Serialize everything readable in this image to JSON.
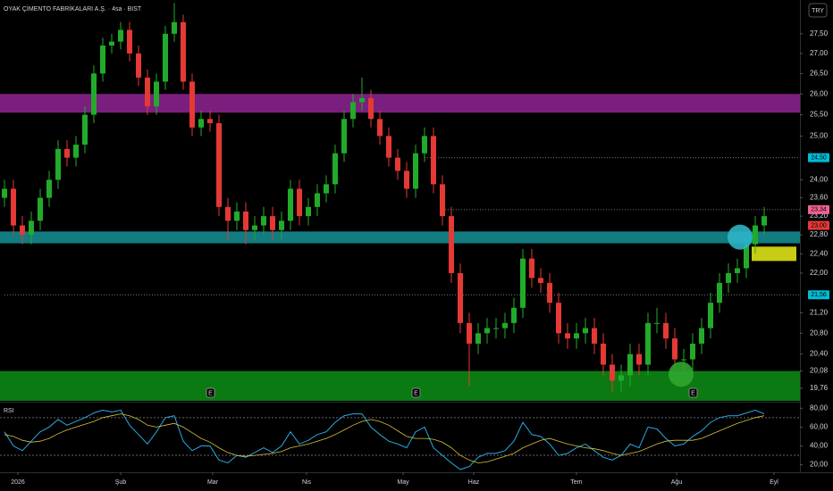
{
  "chart_data": {
    "type": "candlestick",
    "title": "OYAK ÇİMENTO FABRİKALARI A.Ş. · 4sa · BIST",
    "currency": "TRY",
    "log_scale": true,
    "up_color": "#22ab2a",
    "down_color": "#e53935",
    "xlim": [
      -0.5,
      89
    ],
    "ylim": [
      19.53,
      28.38
    ],
    "xticks": [
      {
        "value": 1.5,
        "label": "2026"
      },
      {
        "value": 13,
        "label": "Şub"
      },
      {
        "value": 23.3,
        "label": "Mar"
      },
      {
        "value": 33.8,
        "label": "Nis"
      },
      {
        "value": 44.6,
        "label": "May"
      },
      {
        "value": 52.5,
        "label": "Haz"
      },
      {
        "value": 64,
        "label": "Tem"
      },
      {
        "value": 75.2,
        "label": "Ağu"
      },
      {
        "value": 86.1,
        "label": "Eyl"
      }
    ],
    "yticks": [
      {
        "value": 27.5,
        "label": "27,50"
      },
      {
        "value": 27,
        "label": "27,00"
      },
      {
        "value": 26.5,
        "label": "26,50"
      },
      {
        "value": 26,
        "label": "26,00"
      },
      {
        "value": 25.5,
        "label": "25,50"
      },
      {
        "value": 25,
        "label": "25,00"
      },
      {
        "value": 24,
        "label": "24,00"
      },
      {
        "value": 23.6,
        "label": "23,60"
      },
      {
        "value": 23.2,
        "label": "23,20"
      },
      {
        "value": 22.8,
        "label": "22,80"
      },
      {
        "value": 22.4,
        "label": "22,40"
      },
      {
        "value": 22,
        "label": "22,00"
      },
      {
        "value": 21.2,
        "label": "21,20"
      },
      {
        "value": 20.8,
        "label": "20,80"
      },
      {
        "value": 20.4,
        "label": "20,40"
      },
      {
        "value": 20.08,
        "label": "20,08"
      },
      {
        "value": 19.76,
        "label": "19,76"
      }
    ],
    "open": [
      23.6,
      23.8,
      23.0,
      22.8,
      23.1,
      23.6,
      24.0,
      24.7,
      24.5,
      24.8,
      25.5,
      26.5,
      27.2,
      27.3,
      27.6,
      27.0,
      26.4,
      25.7,
      26.3,
      27.5,
      27.8,
      26.3,
      25.2,
      25.4,
      25.3,
      23.4,
      23.1,
      23.3,
      22.9,
      23.0,
      23.2,
      22.9,
      23.1,
      23.8,
      23.2,
      23.4,
      23.7,
      23.9,
      24.6,
      25.4,
      25.8,
      25.9,
      25.4,
      25.0,
      24.5,
      24.2,
      23.8,
      24.6,
      25.0,
      23.9,
      23.2,
      22.0,
      21.0,
      20.6,
      20.8,
      20.9,
      20.9,
      21.0,
      21.3,
      22.3,
      21.9,
      21.8,
      21.4,
      20.8,
      20.7,
      20.8,
      20.9,
      20.6,
      20.2,
      19.9,
      20.0,
      20.4,
      20.2,
      21.0,
      21.0,
      20.7,
      20.3,
      20.3,
      20.6,
      20.9,
      21.4,
      21.8,
      22.0,
      22.1,
      22.6,
      23.0
    ],
    "high": [
      24.0,
      24.0,
      23.2,
      23.3,
      23.8,
      24.2,
      24.9,
      24.9,
      25.0,
      25.7,
      26.7,
      27.4,
      27.5,
      27.8,
      27.8,
      27.2,
      26.6,
      26.5,
      27.7,
      28.3,
      28.0,
      26.5,
      25.6,
      25.6,
      25.5,
      23.6,
      23.5,
      23.5,
      23.2,
      23.4,
      23.4,
      23.3,
      24.0,
      24.0,
      23.6,
      23.9,
      24.1,
      24.8,
      25.6,
      26.0,
      26.4,
      26.1,
      25.6,
      25.2,
      24.7,
      24.4,
      24.8,
      25.2,
      25.2,
      24.1,
      23.4,
      22.2,
      21.2,
      21.0,
      21.1,
      21.1,
      21.2,
      21.5,
      22.5,
      22.5,
      22.1,
      22.0,
      21.6,
      21.0,
      21.0,
      21.1,
      21.1,
      20.8,
      20.4,
      20.2,
      20.6,
      20.6,
      21.2,
      21.3,
      21.2,
      20.9,
      20.5,
      20.8,
      21.1,
      21.6,
      22.0,
      22.2,
      22.3,
      22.8,
      23.2,
      23.4
    ],
    "low": [
      23.4,
      22.8,
      22.6,
      22.6,
      22.9,
      23.4,
      23.8,
      24.3,
      24.3,
      24.6,
      25.3,
      26.3,
      27.0,
      27.1,
      26.8,
      26.2,
      25.5,
      25.5,
      26.1,
      27.3,
      26.1,
      25.0,
      25.0,
      25.1,
      23.2,
      22.7,
      22.9,
      22.6,
      22.7,
      22.8,
      22.7,
      22.7,
      22.9,
      23.0,
      23.0,
      23.2,
      23.5,
      23.7,
      24.4,
      25.2,
      25.6,
      25.2,
      24.8,
      24.3,
      24.0,
      23.6,
      23.6,
      24.4,
      23.7,
      23.0,
      21.8,
      20.8,
      19.8,
      20.4,
      20.6,
      20.7,
      20.7,
      20.8,
      21.1,
      21.7,
      21.6,
      21.2,
      20.6,
      20.5,
      20.5,
      20.6,
      20.4,
      20.0,
      19.7,
      19.7,
      19.8,
      20.0,
      20.0,
      20.8,
      20.5,
      20.1,
      20.1,
      20.1,
      20.4,
      20.7,
      21.2,
      21.6,
      21.8,
      21.9,
      22.4,
      22.8
    ],
    "close": [
      23.8,
      23.0,
      22.8,
      23.1,
      23.6,
      24.0,
      24.7,
      24.5,
      24.8,
      25.5,
      26.5,
      27.2,
      27.3,
      27.6,
      27.0,
      26.4,
      25.7,
      26.3,
      27.5,
      27.8,
      26.3,
      25.2,
      25.4,
      25.3,
      23.4,
      23.1,
      23.3,
      22.9,
      23.0,
      23.2,
      22.9,
      23.1,
      23.8,
      23.2,
      23.4,
      23.7,
      23.9,
      24.6,
      25.4,
      25.8,
      25.9,
      25.4,
      25.0,
      24.5,
      24.2,
      23.8,
      24.6,
      25.0,
      23.9,
      23.2,
      22.0,
      21.0,
      20.6,
      20.8,
      20.9,
      20.9,
      21.0,
      21.3,
      22.3,
      21.9,
      21.8,
      21.4,
      20.8,
      20.7,
      20.8,
      20.9,
      20.6,
      20.2,
      19.9,
      20.0,
      20.4,
      20.2,
      21.0,
      21.0,
      20.7,
      20.3,
      20.3,
      20.6,
      20.9,
      21.4,
      21.8,
      22.0,
      22.1,
      22.6,
      23.0,
      23.2
    ],
    "zones": [
      {
        "from": 25.55,
        "to": 26.0,
        "color": "#7b1f7e"
      },
      {
        "from": 22.62,
        "to": 22.87,
        "color": "#127c80"
      },
      {
        "from": 19.53,
        "to": 20.08,
        "color": "#0b7a12"
      }
    ],
    "boxes": [
      {
        "x0": 83.6,
        "x1": 88.6,
        "from": 22.25,
        "to": 22.55,
        "color": "#c8cc14"
      }
    ],
    "circles": [
      {
        "x": 82.3,
        "price": 22.75,
        "color": "#2bb5c6"
      },
      {
        "x": 75.7,
        "price": 20.02,
        "color": "#2fa62f"
      }
    ],
    "price_lines": [
      {
        "value": 24.5,
        "label": "24,50",
        "color": "#00bcd4",
        "start": 47
      },
      {
        "value": 23.34,
        "label": "23,34",
        "color": "#f06292",
        "start": 49
      },
      {
        "value": 23.0,
        "label": "23,00",
        "color": "#e53935",
        "start": null
      },
      {
        "value": 21.56,
        "label": "21,56",
        "color": "#00bcd4",
        "start": 0
      }
    ],
    "events": [
      {
        "x": 23,
        "label": "E"
      },
      {
        "x": 46,
        "label": "E"
      },
      {
        "x": 77,
        "label": "E"
      }
    ],
    "rsi": {
      "title": "RSI",
      "ylim": [
        13,
        85
      ],
      "yticks": [
        {
          "value": 80,
          "label": "80,00"
        },
        {
          "value": 60,
          "label": "60,00"
        },
        {
          "value": 40,
          "label": "40,00"
        },
        {
          "value": 20,
          "label": "20,00"
        }
      ],
      "levels": [
        70,
        30
      ],
      "series": [
        {
          "color": "#2aa9e0",
          "values": [
            55,
            40,
            35,
            45,
            55,
            60,
            68,
            62,
            66,
            70,
            75,
            78,
            76,
            78,
            62,
            52,
            42,
            55,
            70,
            72,
            45,
            35,
            40,
            40,
            25,
            22,
            30,
            28,
            33,
            38,
            33,
            40,
            55,
            42,
            46,
            52,
            55,
            65,
            72,
            74,
            74,
            60,
            52,
            45,
            42,
            38,
            55,
            60,
            38,
            30,
            22,
            15,
            18,
            28,
            32,
            32,
            35,
            45,
            65,
            52,
            50,
            42,
            30,
            32,
            38,
            42,
            35,
            28,
            25,
            30,
            42,
            38,
            60,
            58,
            48,
            40,
            42,
            50,
            56,
            65,
            70,
            72,
            72,
            75,
            78,
            74
          ]
        },
        {
          "color": "#d9c23a",
          "values": [
            52,
            50,
            46,
            44,
            45,
            48,
            53,
            57,
            60,
            63,
            66,
            70,
            72,
            74,
            72,
            68,
            62,
            60,
            62,
            64,
            60,
            54,
            48,
            44,
            38,
            33,
            30,
            29,
            30,
            31,
            32,
            34,
            38,
            40,
            42,
            45,
            48,
            52,
            57,
            62,
            66,
            68,
            66,
            62,
            56,
            50,
            48,
            48,
            47,
            44,
            38,
            30,
            25,
            22,
            23,
            26,
            29,
            32,
            38,
            42,
            46,
            48,
            45,
            42,
            40,
            38,
            37,
            35,
            32,
            30,
            32,
            34,
            38,
            42,
            45,
            46,
            46,
            46,
            48,
            52,
            56,
            60,
            64,
            67,
            70,
            72
          ]
        }
      ]
    }
  }
}
